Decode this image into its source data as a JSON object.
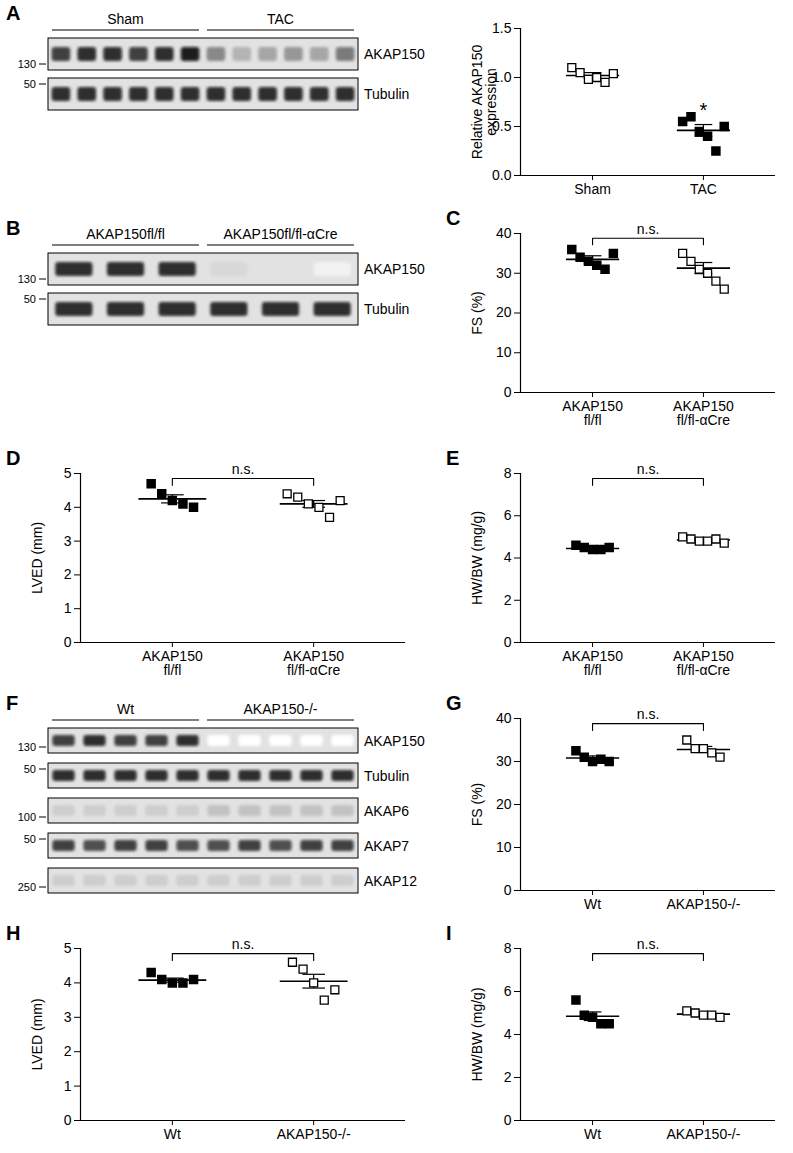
{
  "chart_data": [
    {
      "type": "blot",
      "label": "A",
      "groups": [
        {
          "label": "Sham",
          "lanes": 6
        },
        {
          "label": "TAC",
          "lanes": 6
        }
      ],
      "rows": [
        {
          "label": "AKAP150",
          "ladder": 130,
          "intensity": [
            0.8,
            0.85,
            0.85,
            0.8,
            0.85,
            0.9,
            0.55,
            0.4,
            0.45,
            0.5,
            0.45,
            0.6
          ]
        },
        {
          "label": "Tubulin",
          "ladder": 50,
          "intensity": [
            0.85,
            0.85,
            0.85,
            0.85,
            0.85,
            0.85,
            0.85,
            0.85,
            0.85,
            0.85,
            0.85,
            0.85
          ]
        }
      ]
    },
    {
      "type": "scatter",
      "categories": [
        "Sham",
        "TAC"
      ],
      "values": [
        [
          1.1,
          1.05,
          0.98,
          1.0,
          0.95,
          1.04
        ],
        [
          0.55,
          0.6,
          0.45,
          0.4,
          0.25,
          0.5
        ]
      ],
      "mean": [
        1.02,
        0.46
      ],
      "sem": [
        0.03,
        0.06
      ],
      "marker": [
        "open_square",
        "square"
      ],
      "color": "#000000",
      "ylabel": "Relative AKAP150\nexpression",
      "ylim": [
        0,
        1.5
      ],
      "yticks": [
        {
          "value": 0,
          "label": "0.0"
        },
        {
          "value": 0.5,
          "label": "0.5"
        },
        {
          "value": 1,
          "label": "1.0"
        },
        {
          "value": 1.5,
          "label": "1.5"
        }
      ],
      "annotations": [
        {
          "text": "*",
          "at": 1
        }
      ]
    },
    {
      "type": "blot",
      "label": "B",
      "groups": [
        {
          "label": "AKAP150fl/fl",
          "lanes": 3
        },
        {
          "label": "AKAP150fl/fl-αCre",
          "lanes": 3
        }
      ],
      "rows": [
        {
          "label": "AKAP150",
          "ladder": 130,
          "intensity": [
            0.85,
            0.85,
            0.85,
            0.25,
            0.2,
            0.1
          ]
        },
        {
          "label": "Tubulin",
          "ladder": 50,
          "intensity": [
            0.85,
            0.85,
            0.85,
            0.85,
            0.85,
            0.85
          ]
        }
      ]
    },
    {
      "type": "scatter",
      "label": "C",
      "categories": [
        "AKAP150\nfl/fl",
        "AKAP150\nfl/fl-αCre"
      ],
      "values": [
        [
          36,
          34,
          33,
          32,
          31,
          35
        ],
        [
          35,
          33,
          31,
          30,
          28,
          26
        ]
      ],
      "mean": [
        33.5,
        31.3
      ],
      "sem": [
        0.9,
        1.4
      ],
      "marker": [
        "square",
        "open_square"
      ],
      "color": "#000000",
      "ylabel": "FS (%)",
      "ylim": [
        0,
        40
      ],
      "yticks": [
        0,
        10,
        20,
        30,
        40
      ],
      "annotations": [
        {
          "text": "n.s.",
          "between": [
            0,
            1
          ]
        }
      ]
    },
    {
      "type": "scatter",
      "label": "D",
      "categories": [
        "AKAP150\nfl/fl",
        "AKAP150\nfl/fl-αCre"
      ],
      "values": [
        [
          4.7,
          4.4,
          4.2,
          4.1,
          4.0
        ],
        [
          4.4,
          4.3,
          4.1,
          4.0,
          3.7,
          4.2
        ]
      ],
      "mean": [
        4.25,
        4.1
      ],
      "sem": [
        0.12,
        0.1
      ],
      "marker": [
        "square",
        "open_square"
      ],
      "color": "#000000",
      "ylabel": "LVED (mm)",
      "ylim": [
        0,
        5
      ],
      "yticks": [
        0,
        1,
        2,
        3,
        4,
        5
      ],
      "annotations": [
        {
          "text": "n.s.",
          "between": [
            0,
            1
          ]
        }
      ]
    },
    {
      "type": "scatter",
      "label": "E",
      "categories": [
        "AKAP150\nfl/fl",
        "AKAP150\nfl/fl-αCre"
      ],
      "values": [
        [
          4.6,
          4.5,
          4.4,
          4.4,
          4.5
        ],
        [
          5.0,
          4.9,
          4.8,
          4.8,
          4.9,
          4.7
        ]
      ],
      "mean": [
        4.45,
        4.85
      ],
      "sem": [
        0.05,
        0.05
      ],
      "marker": [
        "square",
        "open_square"
      ],
      "color": "#000000",
      "ylabel": "HW/BW (mg/g)",
      "ylim": [
        0,
        8
      ],
      "yticks": [
        0,
        2,
        4,
        6,
        8
      ],
      "annotations": [
        {
          "text": "n.s.",
          "between": [
            0,
            1
          ]
        }
      ]
    },
    {
      "type": "blot",
      "label": "F",
      "groups": [
        {
          "label": "Wt",
          "lanes": 5
        },
        {
          "label": "AKAP150-/-",
          "lanes": 5
        }
      ],
      "rows": [
        {
          "label": "AKAP150",
          "ladder": 130,
          "intensity": [
            0.8,
            0.85,
            0.8,
            0.8,
            0.85,
            0,
            0,
            0,
            0,
            0
          ]
        },
        {
          "label": "Tubulin",
          "ladder": 50,
          "intensity": [
            0.85,
            0.85,
            0.85,
            0.85,
            0.85,
            0.85,
            0.85,
            0.85,
            0.85,
            0.85
          ]
        },
        {
          "label": "AKAP6",
          "ladder": 100,
          "intensity": [
            0.3,
            0.3,
            0.3,
            0.3,
            0.3,
            0.35,
            0.35,
            0.35,
            0.35,
            0.35
          ]
        },
        {
          "label": "AKAP7",
          "ladder": 50,
          "intensity": [
            0.8,
            0.75,
            0.8,
            0.8,
            0.75,
            0.75,
            0.8,
            0.75,
            0.8,
            0.8
          ]
        },
        {
          "label": "AKAP12",
          "ladder": 250,
          "intensity": [
            0.3,
            0.3,
            0.3,
            0.3,
            0.3,
            0.3,
            0.3,
            0.3,
            0.3,
            0.3
          ]
        }
      ]
    },
    {
      "type": "scatter",
      "label": "G",
      "categories": [
        "Wt",
        "AKAP150-/-"
      ],
      "values": [
        [
          32.5,
          31,
          30,
          30.5,
          30
        ],
        [
          35,
          33,
          33,
          32,
          31
        ]
      ],
      "mean": [
        30.8,
        32.8
      ],
      "sem": [
        0.5,
        0.7
      ],
      "marker": [
        "square",
        "open_square"
      ],
      "color": "#000000",
      "ylabel": "FS (%)",
      "ylim": [
        0,
        40
      ],
      "yticks": [
        0,
        10,
        20,
        30,
        40
      ],
      "annotations": [
        {
          "text": "n.s.",
          "between": [
            0,
            1
          ]
        }
      ]
    },
    {
      "type": "scatter",
      "label": "H",
      "categories": [
        "Wt",
        "AKAP150-/-"
      ],
      "values": [
        [
          4.3,
          4.1,
          4.0,
          4.0,
          4.1
        ],
        [
          4.6,
          4.4,
          4.0,
          3.5,
          3.8
        ]
      ],
      "mean": [
        4.08,
        4.05
      ],
      "sem": [
        0.06,
        0.2
      ],
      "marker": [
        "square",
        "open_square"
      ],
      "color": "#000000",
      "ylabel": "LVED (mm)",
      "ylim": [
        0,
        5
      ],
      "yticks": [
        0,
        1,
        2,
        3,
        4,
        5
      ],
      "annotations": [
        {
          "text": "n.s.",
          "between": [
            0,
            1
          ]
        }
      ]
    },
    {
      "type": "scatter",
      "label": "I",
      "categories": [
        "Wt",
        "AKAP150-/-"
      ],
      "values": [
        [
          5.6,
          4.9,
          4.8,
          4.5,
          4.5
        ],
        [
          5.1,
          5.0,
          4.9,
          4.9,
          4.8
        ]
      ],
      "mean": [
        4.85,
        4.95
      ],
      "sem": [
        0.2,
        0.07
      ],
      "marker": [
        "square",
        "open_square"
      ],
      "color": "#000000",
      "ylabel": "HW/BW (mg/g)",
      "ylim": [
        0,
        8
      ],
      "yticks": [
        0,
        2,
        4,
        6,
        8
      ],
      "annotations": [
        {
          "text": "n.s.",
          "between": [
            0,
            1
          ]
        }
      ]
    }
  ]
}
